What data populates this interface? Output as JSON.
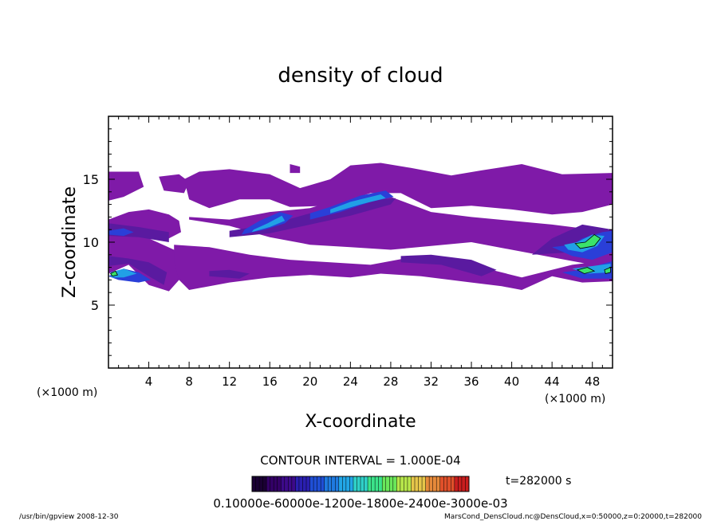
{
  "chart_data": {
    "type": "heatmap",
    "title": "density of cloud",
    "xlabel": "X-coordinate",
    "ylabel": "Z-coordinate",
    "x_unit_left": "(×1000 m)",
    "x_unit_right": "(×1000 m)",
    "xlim": [
      0,
      50
    ],
    "ylim": [
      0,
      20
    ],
    "x_ticks": [
      4,
      8,
      12,
      16,
      20,
      24,
      28,
      32,
      36,
      40,
      44,
      48
    ],
    "y_ticks": [
      5,
      10,
      15
    ],
    "contour_interval": "CONTOUR INTERVAL = 1.000E-04",
    "time": "t=282000 s",
    "colorbar_labels_text": "0.10000e-60000e-1200e-1800e-2400e-3000e-03",
    "colorbar_colors": [
      "#1a0033",
      "#330066",
      "#3d0a8a",
      "#2a1fb0",
      "#1f4fd6",
      "#1f7ae0",
      "#22a6e6",
      "#2fd0c8",
      "#3be38a",
      "#6ae65a",
      "#b7e64a",
      "#e6c64a",
      "#e68a3a",
      "#e0502a",
      "#c81e1e"
    ],
    "level_colors": {
      "1": "#7f1aa8",
      "2": "#5a1aa0",
      "3": "#2a3fd8",
      "4": "#21a0e6",
      "5": "#3be36a"
    },
    "regions": [
      {
        "level": 1,
        "points": [
          [
            0,
            7.5
          ],
          [
            2,
            8.2
          ],
          [
            4,
            6.6
          ],
          [
            6,
            6.1
          ],
          [
            7,
            7.0
          ],
          [
            7.5,
            8.2
          ],
          [
            6.5,
            9.4
          ],
          [
            4,
            10.3
          ],
          [
            2,
            11.4
          ],
          [
            0,
            11.8
          ]
        ]
      },
      {
        "level": 1,
        "points": [
          [
            0,
            11.8
          ],
          [
            2,
            12.4
          ],
          [
            4,
            12.6
          ],
          [
            6,
            12.2
          ],
          [
            7,
            11.7
          ],
          [
            7.2,
            10.8
          ],
          [
            6,
            10.3
          ],
          [
            4,
            10.5
          ],
          [
            2,
            11.3
          ],
          [
            0,
            11.4
          ]
        ]
      },
      {
        "level": 1,
        "points": [
          [
            0,
            15.6
          ],
          [
            3,
            15.6
          ],
          [
            3.5,
            14.4
          ],
          [
            1.5,
            13.6
          ],
          [
            0,
            13.3
          ]
        ]
      },
      {
        "level": 1,
        "points": [
          [
            5,
            15.2
          ],
          [
            7,
            15.4
          ],
          [
            8,
            14.8
          ],
          [
            7.5,
            13.9
          ],
          [
            5.5,
            14.1
          ]
        ]
      },
      {
        "level": 1,
        "points": [
          [
            8,
            11.8
          ],
          [
            12,
            11.3
          ],
          [
            16,
            10.4
          ],
          [
            20,
            9.8
          ],
          [
            24,
            9.6
          ],
          [
            28,
            9.4
          ],
          [
            32,
            9.7
          ],
          [
            36,
            10.0
          ],
          [
            40,
            9.4
          ],
          [
            44,
            8.8
          ],
          [
            48,
            8.2
          ],
          [
            50,
            8.0
          ],
          [
            50,
            10.6
          ],
          [
            48,
            11.0
          ],
          [
            44,
            11.4
          ],
          [
            40,
            11.7
          ],
          [
            36,
            12.0
          ],
          [
            32,
            12.4
          ],
          [
            28,
            13.6
          ],
          [
            24,
            13.7
          ],
          [
            20,
            12.7
          ],
          [
            16,
            12.4
          ],
          [
            12,
            11.8
          ],
          [
            8,
            12.0
          ]
        ]
      },
      {
        "level": 1,
        "points": [
          [
            7.5,
            15.0
          ],
          [
            9,
            15.6
          ],
          [
            12,
            15.8
          ],
          [
            16,
            15.4
          ],
          [
            19,
            14.3
          ],
          [
            22,
            15.0
          ],
          [
            24,
            16.1
          ],
          [
            27,
            16.3
          ],
          [
            30,
            15.9
          ],
          [
            34,
            15.3
          ],
          [
            37,
            15.7
          ],
          [
            41,
            16.2
          ],
          [
            45,
            15.4
          ],
          [
            50,
            15.5
          ],
          [
            50,
            13.0
          ],
          [
            47,
            12.4
          ],
          [
            44,
            12.2
          ],
          [
            40,
            12.6
          ],
          [
            36,
            12.9
          ],
          [
            32,
            12.7
          ],
          [
            29,
            13.9
          ],
          [
            26,
            13.9
          ],
          [
            22,
            12.9
          ],
          [
            18,
            12.8
          ],
          [
            16,
            13.4
          ],
          [
            13,
            13.4
          ],
          [
            10,
            12.7
          ],
          [
            8,
            13.4
          ]
        ]
      },
      {
        "level": 1,
        "points": [
          [
            6.5,
            9.8
          ],
          [
            10,
            9.6
          ],
          [
            14,
            9.0
          ],
          [
            18,
            8.6
          ],
          [
            22,
            8.4
          ],
          [
            26,
            8.2
          ],
          [
            30,
            8.8
          ],
          [
            34,
            8.4
          ],
          [
            38,
            7.8
          ],
          [
            41,
            7.2
          ],
          [
            43,
            7.6
          ],
          [
            46,
            8.2
          ],
          [
            50,
            8.6
          ],
          [
            50,
            6.9
          ],
          [
            47,
            6.8
          ],
          [
            44,
            7.3
          ],
          [
            41,
            6.2
          ],
          [
            39,
            6.5
          ],
          [
            36,
            6.8
          ],
          [
            31,
            7.3
          ],
          [
            27,
            7.5
          ],
          [
            24,
            7.2
          ],
          [
            20,
            7.4
          ],
          [
            16,
            7.2
          ],
          [
            12,
            6.8
          ],
          [
            8,
            6.2
          ],
          [
            7,
            7.0
          ],
          [
            6.5,
            8.4
          ]
        ]
      },
      {
        "level": 1,
        "points": [
          [
            18,
            16.2
          ],
          [
            19,
            16.0
          ],
          [
            19,
            15.5
          ],
          [
            18,
            15.5
          ]
        ]
      },
      {
        "level": 2,
        "points": [
          [
            0,
            8.1
          ],
          [
            2,
            8.3
          ],
          [
            4,
            7.3
          ],
          [
            5.5,
            6.6
          ],
          [
            5.8,
            7.6
          ],
          [
            4,
            8.4
          ],
          [
            2,
            8.7
          ],
          [
            0,
            8.9
          ]
        ]
      },
      {
        "level": 2,
        "points": [
          [
            0,
            10.5
          ],
          [
            3,
            10.4
          ],
          [
            6,
            10.0
          ],
          [
            6,
            10.8
          ],
          [
            3,
            11.2
          ],
          [
            0,
            11.5
          ]
        ]
      },
      {
        "level": 2,
        "points": [
          [
            10,
            7.3
          ],
          [
            13,
            7.1
          ],
          [
            14,
            7.5
          ],
          [
            12,
            7.8
          ],
          [
            10,
            7.7
          ]
        ]
      },
      {
        "level": 2,
        "points": [
          [
            29,
            8.4
          ],
          [
            33,
            8.2
          ],
          [
            37,
            7.3
          ],
          [
            38.5,
            7.8
          ],
          [
            36,
            8.6
          ],
          [
            32,
            9.0
          ],
          [
            29,
            8.9
          ]
        ]
      },
      {
        "level": 2,
        "points": [
          [
            42,
            9.0
          ],
          [
            46,
            9.2
          ],
          [
            50,
            9.6
          ],
          [
            50,
            11.0
          ],
          [
            47,
            11.4
          ],
          [
            44,
            10.3
          ]
        ]
      },
      {
        "level": 2,
        "points": [
          [
            12,
            10.4
          ],
          [
            16,
            10.7
          ],
          [
            20,
            11.4
          ],
          [
            24,
            12.1
          ],
          [
            28,
            13.0
          ],
          [
            28.5,
            13.5
          ],
          [
            24,
            13.2
          ],
          [
            20,
            12.3
          ],
          [
            16,
            11.4
          ],
          [
            12,
            10.9
          ]
        ]
      },
      {
        "level": 3,
        "points": [
          [
            13.2,
            10.6
          ],
          [
            15.5,
            11.0
          ],
          [
            17.5,
            11.5
          ],
          [
            18.3,
            12.1
          ],
          [
            17,
            12.4
          ],
          [
            15,
            11.7
          ],
          [
            13.5,
            11.0
          ]
        ]
      },
      {
        "level": 3,
        "points": [
          [
            20,
            11.8
          ],
          [
            23,
            12.4
          ],
          [
            26,
            13.2
          ],
          [
            28.3,
            13.6
          ],
          [
            27.5,
            14.1
          ],
          [
            25,
            13.7
          ],
          [
            22,
            12.8
          ],
          [
            20,
            12.3
          ]
        ]
      },
      {
        "level": 3,
        "points": [
          [
            44,
            9.6
          ],
          [
            46,
            9.8
          ],
          [
            47,
            10.3
          ],
          [
            49,
            10.8
          ],
          [
            50,
            10.9
          ],
          [
            50,
            9.2
          ],
          [
            48,
            8.6
          ],
          [
            46,
            8.9
          ]
        ]
      },
      {
        "level": 3,
        "points": [
          [
            45,
            7.6
          ],
          [
            47,
            7.8
          ],
          [
            50,
            8.5
          ],
          [
            50,
            7.1
          ],
          [
            47,
            7.1
          ]
        ]
      },
      {
        "level": 3,
        "points": [
          [
            0,
            7.3
          ],
          [
            1.5,
            7.9
          ],
          [
            3,
            7.6
          ],
          [
            4.2,
            7.0
          ],
          [
            3,
            6.8
          ],
          [
            1,
            7.0
          ]
        ]
      },
      {
        "level": 3,
        "points": [
          [
            0,
            10.9
          ],
          [
            1.5,
            11.1
          ],
          [
            2.5,
            10.8
          ],
          [
            1.5,
            10.5
          ],
          [
            0,
            10.6
          ]
        ]
      },
      {
        "level": 4,
        "points": [
          [
            14.2,
            10.8
          ],
          [
            16,
            11.2
          ],
          [
            17.5,
            11.7
          ],
          [
            17.2,
            12.1
          ],
          [
            15.8,
            11.5
          ],
          [
            14.4,
            11.0
          ]
        ]
      },
      {
        "level": 4,
        "points": [
          [
            22,
            12.3
          ],
          [
            25,
            13.0
          ],
          [
            27.5,
            13.5
          ],
          [
            27,
            13.8
          ],
          [
            24,
            13.2
          ],
          [
            22,
            12.6
          ]
        ]
      },
      {
        "level": 4,
        "points": [
          [
            45.2,
            9.8
          ],
          [
            46.5,
            10.0
          ],
          [
            48,
            10.6
          ],
          [
            49.2,
            10.5
          ],
          [
            48.5,
            9.7
          ],
          [
            47,
            9.2
          ],
          [
            45.6,
            9.4
          ]
        ]
      },
      {
        "level": 4,
        "points": [
          [
            46,
            7.9
          ],
          [
            48,
            8.1
          ],
          [
            49.8,
            8.3
          ],
          [
            49.8,
            7.6
          ],
          [
            47.5,
            7.5
          ]
        ]
      },
      {
        "level": 4,
        "points": [
          [
            0.2,
            7.6
          ],
          [
            1.5,
            7.9
          ],
          [
            2.8,
            7.5
          ],
          [
            1.5,
            7.2
          ],
          [
            0.3,
            7.2
          ]
        ]
      },
      {
        "level": 5,
        "points": [
          [
            46.3,
            9.9
          ],
          [
            47.3,
            10.0
          ],
          [
            48.2,
            10.6
          ],
          [
            48.8,
            10.3
          ],
          [
            48.2,
            9.7
          ],
          [
            46.8,
            9.5
          ]
        ]
      },
      {
        "level": 5,
        "points": [
          [
            46.5,
            7.8
          ],
          [
            47.5,
            8.0
          ],
          [
            48.2,
            7.7
          ],
          [
            47.2,
            7.5
          ]
        ]
      },
      {
        "level": 5,
        "points": [
          [
            49.2,
            7.8
          ],
          [
            49.8,
            8.0
          ],
          [
            49.8,
            7.6
          ],
          [
            49.3,
            7.5
          ]
        ]
      },
      {
        "level": 5,
        "points": [
          [
            0.2,
            7.5
          ],
          [
            0.7,
            7.7
          ],
          [
            0.9,
            7.4
          ],
          [
            0.4,
            7.3
          ]
        ]
      }
    ]
  },
  "footer": {
    "program": "/usr/bin/gpview  2008-12-30",
    "source": "MarsCond_DensCloud.nc@DensCloud,x=0:50000,z=0:20000,t=282000"
  }
}
